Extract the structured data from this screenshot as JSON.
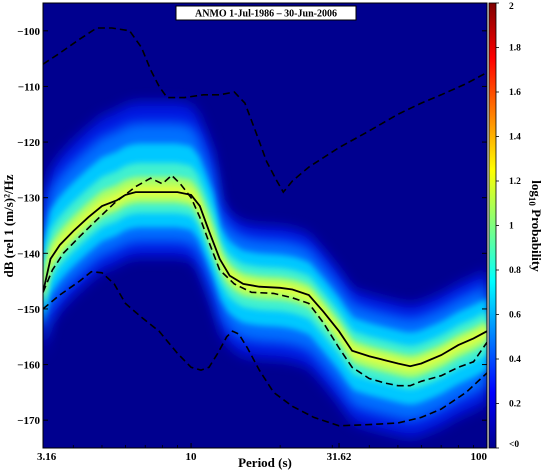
{
  "chart_data": {
    "type": "heatmap",
    "title": "ANMO 1-Jul-1986 – 30-Jun-2006",
    "xlabel": "Period (s)",
    "ylabel": "dB (rel 1 (m/s)²/Hz",
    "x_scale": "log",
    "xlim": [
      3.16,
      100
    ],
    "ylim": [
      -175,
      -95
    ],
    "x_ticks": [
      3.16,
      10,
      31.62,
      100
    ],
    "x_tick_labels": [
      "3.16",
      "10",
      "31.62",
      "100"
    ],
    "y_ticks": [
      -100,
      -110,
      -120,
      -130,
      -140,
      -150,
      -160,
      -170
    ],
    "y_tick_labels": [
      "−100",
      "−110",
      "−120",
      "−130",
      "−140",
      "−150",
      "−160",
      "−170"
    ],
    "colorbar": {
      "label_main": "log",
      "label_sub": "10",
      "label_tail": " Probability",
      "range": [
        0,
        2
      ],
      "ticks": [
        0,
        0.2,
        0.4,
        0.6,
        0.8,
        1,
        1.2,
        1.4,
        1.6,
        1.8,
        2
      ],
      "tick_labels": [
        "<0",
        "0.2",
        "0.4",
        "0.6",
        "0.8",
        "1",
        "1.2",
        "1.4",
        "1.6",
        "1.8",
        "2"
      ]
    },
    "background_color": "#00008f",
    "series": [
      {
        "style": "solid",
        "points": [
          [
            3.16,
            -147
          ],
          [
            3.35,
            -141
          ],
          [
            3.6,
            -138.5
          ],
          [
            4.0,
            -136
          ],
          [
            4.5,
            -133.5
          ],
          [
            5.0,
            -131.5
          ],
          [
            5.6,
            -130.5
          ],
          [
            6.0,
            -129.5
          ],
          [
            6.5,
            -129
          ],
          [
            7.0,
            -129
          ],
          [
            8.0,
            -129
          ],
          [
            9.0,
            -129
          ],
          [
            10.0,
            -129.5
          ],
          [
            10.7,
            -131.5
          ],
          [
            11.5,
            -136
          ],
          [
            12.5,
            -141
          ],
          [
            13.5,
            -144
          ],
          [
            15,
            -145.5
          ],
          [
            17,
            -146
          ],
          [
            20,
            -146.2
          ],
          [
            22,
            -146.5
          ],
          [
            25,
            -147.5
          ],
          [
            28,
            -150.5
          ],
          [
            31.62,
            -154
          ],
          [
            35,
            -157.5
          ],
          [
            40,
            -158.5
          ],
          [
            45,
            -159.2
          ],
          [
            50,
            -159.8
          ],
          [
            55,
            -160.3
          ],
          [
            60,
            -159.8
          ],
          [
            70,
            -158.3
          ],
          [
            80,
            -156.5
          ],
          [
            90,
            -155.3
          ],
          [
            100,
            -154
          ]
        ]
      },
      {
        "style": "dashed",
        "points": [
          [
            3.16,
            -147
          ],
          [
            3.4,
            -143
          ],
          [
            3.7,
            -140
          ],
          [
            4.2,
            -137
          ],
          [
            4.8,
            -134
          ],
          [
            5.5,
            -131
          ],
          [
            6.5,
            -128
          ],
          [
            7.3,
            -126.5
          ],
          [
            8,
            -127.5
          ],
          [
            8.6,
            -126
          ],
          [
            9.2,
            -127.5
          ],
          [
            10,
            -130
          ],
          [
            10.7,
            -133.5
          ],
          [
            11.5,
            -138
          ],
          [
            12.5,
            -143
          ],
          [
            14,
            -145.5
          ],
          [
            16,
            -147
          ],
          [
            19,
            -147.2
          ],
          [
            22,
            -148
          ],
          [
            25,
            -149
          ],
          [
            28,
            -152.5
          ],
          [
            31.62,
            -157
          ],
          [
            35,
            -160.5
          ],
          [
            40,
            -162.5
          ],
          [
            45,
            -163.3
          ],
          [
            50,
            -163.8
          ],
          [
            55,
            -163.8
          ],
          [
            60,
            -163
          ],
          [
            70,
            -162
          ],
          [
            80,
            -160.5
          ],
          [
            90,
            -159.5
          ],
          [
            100,
            -156
          ]
        ]
      },
      {
        "style": "dashed",
        "points": [
          [
            3.16,
            -106
          ],
          [
            3.6,
            -104
          ],
          [
            4.2,
            -101.5
          ],
          [
            4.8,
            -99.5
          ],
          [
            5.4,
            -99.5
          ],
          [
            6.2,
            -100
          ],
          [
            6.8,
            -103
          ],
          [
            7.3,
            -107
          ],
          [
            7.8,
            -110
          ],
          [
            8.3,
            -112
          ],
          [
            9.5,
            -112
          ],
          [
            11,
            -111.5
          ],
          [
            12.5,
            -111.5
          ],
          [
            14,
            -111
          ],
          [
            15.2,
            -113
          ],
          [
            16.5,
            -118
          ],
          [
            18,
            -123.5
          ],
          [
            19.5,
            -127
          ],
          [
            20.5,
            -129
          ],
          [
            22,
            -127
          ],
          [
            25,
            -124.5
          ],
          [
            31.62,
            -121
          ],
          [
            40,
            -118
          ],
          [
            50,
            -115
          ],
          [
            60,
            -113
          ],
          [
            70,
            -111.5
          ],
          [
            85,
            -109.5
          ],
          [
            100,
            -107.5
          ]
        ]
      },
      {
        "style": "dashed",
        "points": [
          [
            3.16,
            -150
          ],
          [
            3.6,
            -147.5
          ],
          [
            4.2,
            -145
          ],
          [
            4.6,
            -143.3
          ],
          [
            5.0,
            -143.5
          ],
          [
            5.5,
            -145.5
          ],
          [
            6.0,
            -149
          ],
          [
            6.8,
            -151.5
          ],
          [
            7.8,
            -154
          ],
          [
            9.0,
            -158
          ],
          [
            10.0,
            -160.5
          ],
          [
            10.8,
            -161
          ],
          [
            11.5,
            -160.5
          ],
          [
            12.3,
            -158
          ],
          [
            13.2,
            -155
          ],
          [
            13.8,
            -154
          ],
          [
            14.5,
            -154.5
          ],
          [
            15.5,
            -157
          ],
          [
            17,
            -161
          ],
          [
            19,
            -165
          ],
          [
            22,
            -167.5
          ],
          [
            26,
            -169.5
          ],
          [
            31.62,
            -171
          ],
          [
            40,
            -170.8
          ],
          [
            50,
            -170.5
          ],
          [
            60,
            -169.5
          ],
          [
            70,
            -168
          ],
          [
            85,
            -165
          ],
          [
            100,
            -161.5
          ]
        ]
      }
    ]
  }
}
